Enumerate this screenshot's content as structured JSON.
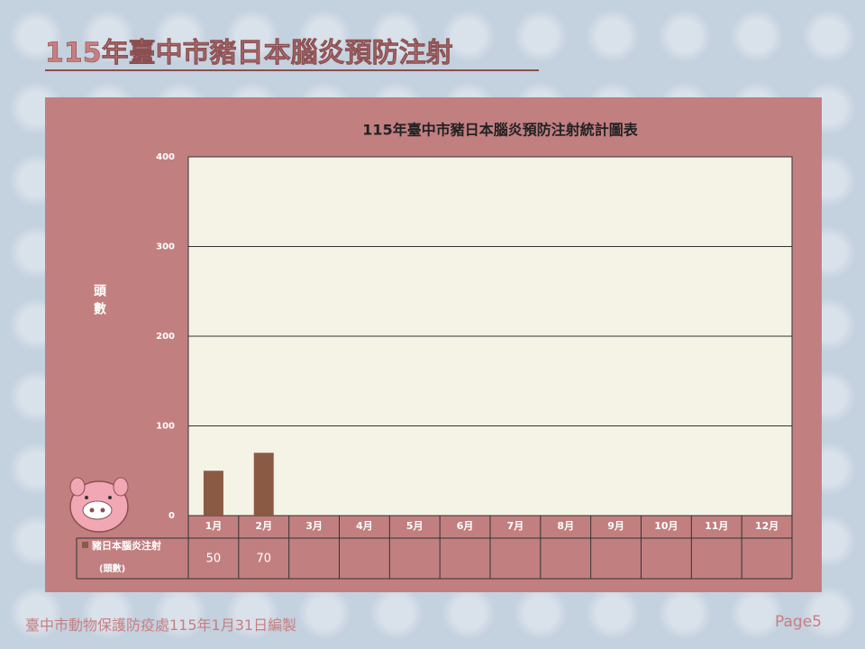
{
  "slide_title": "115年臺中市豬日本腦炎預防注射",
  "chart_data": {
    "type": "bar",
    "title": "115年臺中市豬日本腦炎預防注射統計圖表",
    "y_label": "頭數",
    "categories": [
      "1月",
      "2月",
      "3月",
      "4月",
      "5月",
      "6月",
      "7月",
      "8月",
      "9月",
      "10月",
      "11月",
      "12月"
    ],
    "series": [
      {
        "name": "豬日本腦炎注射",
        "unit": "(頭數)",
        "color": "#8b5a44",
        "values": [
          50,
          70,
          null,
          null,
          null,
          null,
          null,
          null,
          null,
          null,
          null,
          null
        ]
      }
    ],
    "ylim": [
      0,
      400
    ],
    "yticks": [
      0,
      100,
      200,
      300,
      400
    ],
    "grid": true
  },
  "footer": {
    "source": "臺中市動物保護防疫處115年1月31日編製",
    "page": "Page5"
  }
}
